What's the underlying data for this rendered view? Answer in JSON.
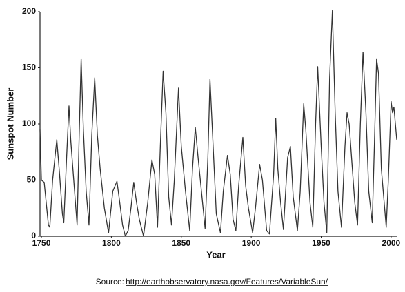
{
  "chart_data": {
    "type": "line",
    "x_label": "Year",
    "y_label": "Sunspot Number",
    "x": [
      1749,
      1750,
      1752,
      1755,
      1756,
      1758,
      1761,
      1763,
      1765,
      1766,
      1768,
      1769.7,
      1771,
      1774,
      1775.5,
      1777,
      1778.4,
      1780,
      1782,
      1784,
      1786,
      1788.1,
      1790,
      1792,
      1795,
      1798,
      1801,
      1804,
      1806,
      1808,
      1810,
      1812,
      1814,
      1816,
      1818,
      1820,
      1823,
      1826,
      1829,
      1831,
      1833,
      1835,
      1837,
      1839,
      1841,
      1843,
      1845,
      1848,
      1850,
      1853,
      1856,
      1858,
      1860,
      1862,
      1864,
      1867,
      1869,
      1870.5,
      1872,
      1875,
      1878,
      1880,
      1883,
      1885,
      1887,
      1889,
      1891,
      1894,
      1896,
      1898,
      1901,
      1903,
      1906,
      1908,
      1911,
      1913,
      1916,
      1917.5,
      1919,
      1921,
      1923,
      1926,
      1928,
      1930,
      1933,
      1935,
      1937.5,
      1939,
      1942,
      1944,
      1946,
      1947.5,
      1950,
      1952,
      1954,
      1956,
      1958,
      1960,
      1962,
      1964.5,
      1967,
      1968.5,
      1970,
      1972,
      1974,
      1976,
      1978,
      1979.9,
      1982,
      1984,
      1986.5,
      1988,
      1989.6,
      1991,
      1993,
      1996.5,
      1998,
      2000,
      2001,
      2002,
      2004
    ],
    "values": [
      95,
      50,
      48,
      10,
      8,
      50,
      86,
      55,
      20,
      12,
      70,
      116,
      85,
      35,
      10,
      90,
      158,
      95,
      40,
      10,
      90,
      141,
      90,
      60,
      25,
      3,
      40,
      49,
      30,
      10,
      0,
      5,
      25,
      48,
      30,
      15,
      0,
      30,
      68,
      55,
      8,
      80,
      147,
      110,
      35,
      10,
      50,
      132,
      80,
      40,
      5,
      60,
      97,
      70,
      45,
      7,
      70,
      140,
      100,
      20,
      3,
      40,
      72,
      55,
      15,
      5,
      45,
      88,
      45,
      25,
      3,
      25,
      64,
      50,
      5,
      2,
      55,
      105,
      60,
      30,
      6,
      70,
      80,
      35,
      5,
      40,
      118,
      95,
      30,
      8,
      100,
      151,
      80,
      30,
      3,
      140,
      201,
      110,
      40,
      8,
      80,
      110,
      100,
      65,
      30,
      10,
      100,
      164,
      110,
      40,
      12,
      80,
      158,
      145,
      60,
      8,
      50,
      120,
      110,
      115,
      86
    ],
    "color": "#333333",
    "xlim": [
      1749,
      2004
    ],
    "xticks": [
      1750,
      1800,
      1850,
      1900,
      1950,
      2000
    ],
    "ylim": [
      0,
      200
    ],
    "yticks": [
      0,
      50,
      100,
      150,
      200
    ],
    "grid": false
  },
  "source": {
    "label": "Source:",
    "url": "http://earthobservatory.nasa.gov/Features/VariableSun/"
  }
}
